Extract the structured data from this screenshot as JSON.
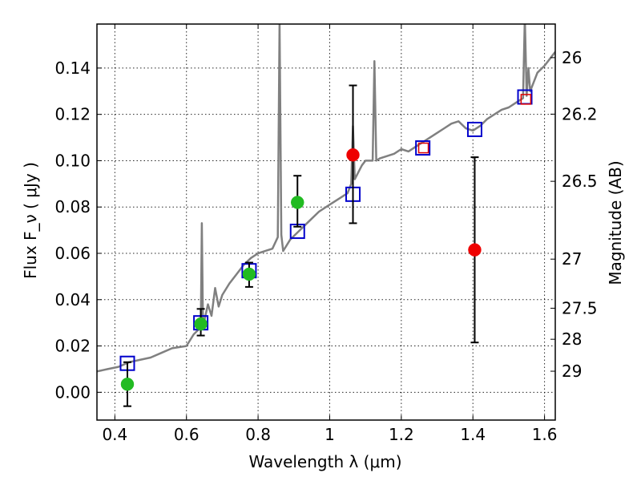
{
  "chart_data": {
    "type": "scatter",
    "xlabel": "Wavelength  λ (μm)",
    "ylabel": "Flux  F_ν  ( μJy )",
    "ylabel_right": "Magnitude (AB)",
    "xlim": [
      0.35,
      1.63
    ],
    "ylim": [
      -0.012,
      0.159
    ],
    "grid": true,
    "x_ticks": [
      0.4,
      0.6,
      0.8,
      1.0,
      1.2,
      1.4,
      1.6
    ],
    "x_tick_labels": [
      "0.4",
      "0.6",
      "0.8",
      "1",
      "1.2",
      "1.4",
      "1.6"
    ],
    "y_ticks": [
      0.0,
      0.02,
      0.04,
      0.06,
      0.08,
      0.1,
      0.12,
      0.14
    ],
    "y_tick_labels": [
      "0.00",
      "0.02",
      "0.04",
      "0.06",
      "0.08",
      "0.10",
      "0.12",
      "0.14"
    ],
    "right_ticks": [
      {
        "flux": 0.1445,
        "label": "26"
      },
      {
        "flux": 0.1201,
        "label": "26.2"
      },
      {
        "flux": 0.0911,
        "label": "26.5"
      },
      {
        "flux": 0.0575,
        "label": "27"
      },
      {
        "flux": 0.0363,
        "label": "27.5"
      },
      {
        "flux": 0.0229,
        "label": "28"
      },
      {
        "flux": 0.0091,
        "label": "29"
      }
    ],
    "model_spectrum": {
      "color": "#808080",
      "x": [
        0.35,
        0.38,
        0.41,
        0.44,
        0.47,
        0.5,
        0.53,
        0.56,
        0.6,
        0.62,
        0.64,
        0.643,
        0.646,
        0.65,
        0.66,
        0.67,
        0.68,
        0.69,
        0.7,
        0.72,
        0.74,
        0.76,
        0.78,
        0.8,
        0.82,
        0.84,
        0.855,
        0.86,
        0.865,
        0.87,
        0.89,
        0.91,
        0.93,
        0.95,
        0.97,
        0.99,
        1.01,
        1.03,
        1.05,
        1.06,
        1.065,
        1.07,
        1.08,
        1.09,
        1.1,
        1.12,
        1.125,
        1.13,
        1.14,
        1.16,
        1.18,
        1.2,
        1.22,
        1.24,
        1.26,
        1.28,
        1.3,
        1.32,
        1.34,
        1.36,
        1.38,
        1.4,
        1.42,
        1.44,
        1.46,
        1.48,
        1.5,
        1.52,
        1.54,
        1.545,
        1.55,
        1.555,
        1.56,
        1.58,
        1.6,
        1.63
      ],
      "y": [
        0.009,
        0.01,
        0.011,
        0.013,
        0.014,
        0.015,
        0.017,
        0.019,
        0.02,
        0.025,
        0.028,
        0.073,
        0.03,
        0.031,
        0.038,
        0.033,
        0.045,
        0.037,
        0.042,
        0.047,
        0.051,
        0.055,
        0.058,
        0.06,
        0.061,
        0.062,
        0.067,
        0.16,
        0.068,
        0.061,
        0.066,
        0.069,
        0.072,
        0.075,
        0.078,
        0.08,
        0.082,
        0.084,
        0.086,
        0.09,
        0.115,
        0.092,
        0.095,
        0.098,
        0.1,
        0.1,
        0.143,
        0.1,
        0.101,
        0.102,
        0.103,
        0.105,
        0.104,
        0.106,
        0.108,
        0.11,
        0.112,
        0.114,
        0.116,
        0.117,
        0.114,
        0.113,
        0.115,
        0.118,
        0.12,
        0.122,
        0.123,
        0.125,
        0.127,
        0.162,
        0.128,
        0.14,
        0.13,
        0.138,
        0.141,
        0.147
      ]
    },
    "series": [
      {
        "marker": "open-square",
        "color": "#0000cc",
        "x": [
          0.435,
          0.64,
          0.775,
          0.91,
          1.065,
          1.26,
          1.405,
          1.545
        ],
        "y": [
          0.0125,
          0.03,
          0.0525,
          0.0695,
          0.0855,
          0.1055,
          0.1135,
          0.1275
        ]
      },
      {
        "marker": "open-square-small",
        "color": "#dd0000",
        "x": [
          1.262,
          1.548
        ],
        "y": [
          0.1055,
          0.1265
        ]
      },
      {
        "marker": "filled-circle",
        "color": "#22bb22",
        "x": [
          0.435,
          0.64,
          0.775,
          0.91
        ],
        "y": [
          0.0035,
          0.0295,
          0.051,
          0.082
        ],
        "yerr_low": [
          0.0095,
          0.005,
          0.0055,
          0.0105
        ],
        "yerr_high": [
          0.0095,
          0.0065,
          0.005,
          0.0115
        ]
      },
      {
        "marker": "filled-circle",
        "color": "#ee0000",
        "x": [
          1.065,
          1.405
        ],
        "y": [
          0.1025,
          0.0615
        ],
        "yerr_low": [
          0.0295,
          0.04
        ],
        "yerr_high": [
          0.03,
          0.04
        ]
      }
    ]
  }
}
